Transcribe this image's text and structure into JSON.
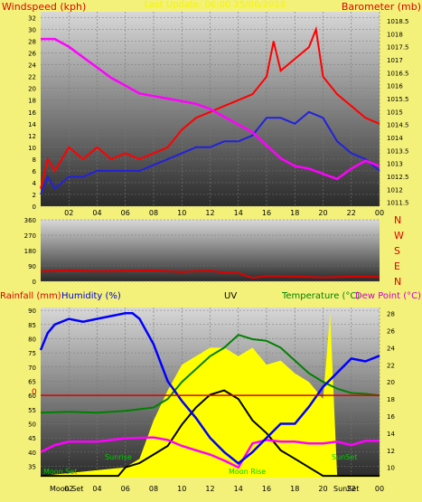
{
  "colors": {
    "background": "#f3f17a",
    "panel_top": "#d8d8d8",
    "panel_bottom": "#2a2a2a",
    "wind_gust": "#ff0000",
    "wind_avg": "#2222dd",
    "pressure": "#ff00ff",
    "wind_dir": "#dd0000",
    "humidity": "#0000ff",
    "temperature": "#008000",
    "dew_point": "#ff00ff",
    "uv": "#000000",
    "solar": "#ffff00",
    "rainfall": "#dd0000"
  },
  "header": {
    "title": "Last Update: 06:00 25/06/2018"
  },
  "chart_data": [
    {
      "type": "line",
      "name": "wind_pressure",
      "title": "",
      "ylabel_left": "Windspeed (kph)",
      "ylabel_right": "Barometer (mb)",
      "x_ticks": [
        "02",
        "04",
        "06",
        "08",
        "10",
        "12",
        "14",
        "16",
        "18",
        "20",
        "22",
        "00"
      ],
      "y_left_ticks": [
        "0",
        "2",
        "4",
        "6",
        "8",
        "10",
        "12",
        "14",
        "16",
        "18",
        "20",
        "22",
        "24",
        "26",
        "28",
        "30",
        "32"
      ],
      "y_left_range": [
        0,
        33
      ],
      "y_right_ticks": [
        "1011.5",
        "1012",
        "1012.5",
        "1013",
        "1013.5",
        "1014",
        "1014.5",
        "1015",
        "1015.5",
        "1016",
        "1016.5",
        "1017",
        "1017.5",
        "1018",
        "1018.5"
      ],
      "y_right_range": [
        1011.35,
        1018.85
      ],
      "series": [
        {
          "key": "gust",
          "x": [
            0,
            0.5,
            1,
            2,
            3,
            4,
            5,
            6,
            7,
            8,
            9,
            10,
            11,
            12,
            13,
            14,
            15,
            16,
            16.5,
            17,
            18,
            19,
            19.5,
            20,
            21,
            22,
            23,
            24
          ],
          "values": [
            3,
            8,
            6,
            10,
            8,
            10,
            8,
            9,
            8,
            9,
            10,
            13,
            15,
            16,
            17,
            18,
            19,
            22,
            28,
            23,
            25,
            27,
            30,
            22,
            19,
            17,
            15,
            14
          ]
        },
        {
          "key": "average",
          "x": [
            0,
            0.5,
            1,
            2,
            3,
            4,
            5,
            6,
            7,
            8,
            9,
            10,
            11,
            12,
            13,
            14,
            15,
            16,
            17,
            18,
            19,
            20,
            21,
            22,
            23,
            24
          ],
          "values": [
            2,
            5,
            3,
            5,
            5,
            6,
            6,
            6,
            6,
            7,
            8,
            9,
            10,
            10,
            11,
            11,
            12,
            15,
            15,
            14,
            16,
            15,
            11,
            9,
            8,
            6
          ]
        },
        {
          "key": "pressure",
          "x": [
            0,
            1,
            2,
            3,
            4,
            5,
            6,
            7,
            8,
            9,
            10,
            11,
            12,
            13,
            14,
            15,
            16,
            17,
            18,
            19,
            20,
            21,
            22,
            23,
            24
          ],
          "values": [
            1017.8,
            1017.8,
            1017.5,
            1017.1,
            1016.7,
            1016.3,
            1016,
            1015.7,
            1015.6,
            1015.5,
            1015.4,
            1015.3,
            1015.1,
            1014.8,
            1014.5,
            1014.2,
            1013.7,
            1013.2,
            1012.9,
            1012.8,
            1012.6,
            1012.4,
            1012.8,
            1013.1,
            1012.9
          ]
        }
      ]
    },
    {
      "type": "line",
      "name": "wind_direction",
      "title": "",
      "y_ticks": [
        "360",
        "270",
        "180",
        "90",
        "0"
      ],
      "y_range": [
        0,
        360
      ],
      "compass_labels": [
        "N",
        "W",
        "S",
        "E",
        "N"
      ],
      "series": [
        {
          "key": "direction",
          "x": [
            0,
            2,
            4,
            6,
            8,
            10,
            11,
            12,
            13,
            14,
            15,
            16,
            18,
            20,
            22,
            24
          ],
          "values": [
            58,
            65,
            60,
            62,
            64,
            55,
            60,
            62,
            52,
            48,
            20,
            30,
            28,
            22,
            28,
            25
          ]
        }
      ]
    },
    {
      "type": "line",
      "name": "temp_humidity_uv",
      "title": "",
      "labels": {
        "rainfall": "Rainfall (mm)",
        "humidity": "Humidity (%)",
        "uv": "UV",
        "temperature": "Temperature (°C)",
        "dew_point": "Dew Point (°C)"
      },
      "x_ticks": [
        "02",
        "04",
        "06",
        "08",
        "10",
        "12",
        "14",
        "16",
        "18",
        "20",
        "22",
        "00"
      ],
      "y_left_ticks": [
        "35",
        "40",
        "45",
        "50",
        "55",
        "60",
        "65",
        "70",
        "75",
        "80",
        "85",
        "90"
      ],
      "y_left_range": [
        31,
        91
      ],
      "y_right_ticks": [
        "10",
        "12",
        "14",
        "16",
        "18",
        "20",
        "22",
        "24",
        "26",
        "28"
      ],
      "y_right_range": [
        8.8,
        28.7
      ],
      "rainfall_value": "0",
      "event_labels": {
        "moon_set_left": "Moon Set",
        "sunrise": "Sunrise",
        "moon_rise": "Moon Rise",
        "sunset": "SunSet",
        "moon_set_bottom": "Moon Set",
        "sunset_bottom": "SunSet"
      },
      "series": [
        {
          "key": "humidity",
          "x": [
            0,
            0.5,
            1,
            2,
            3,
            4,
            5,
            6,
            6.5,
            7,
            8,
            9,
            10,
            11,
            12,
            13,
            14,
            15,
            16,
            17,
            18,
            19,
            20,
            21,
            22,
            23,
            24
          ],
          "values": [
            76,
            82,
            85,
            87,
            86,
            87,
            88,
            89,
            89,
            87,
            78,
            65,
            58,
            52,
            45,
            40,
            36,
            40,
            45,
            50,
            50,
            56,
            63,
            68,
            73,
            72,
            74
          ]
        },
        {
          "key": "temperature",
          "x": [
            0,
            2,
            4,
            6,
            8,
            9,
            10,
            11,
            12,
            13,
            14,
            15,
            16,
            17,
            18,
            19,
            20,
            21,
            22,
            23,
            24
          ],
          "values": [
            16.4,
            16.5,
            16.4,
            16.6,
            17,
            18,
            20,
            21.5,
            23,
            24,
            25.5,
            25,
            24.8,
            24,
            22.5,
            21,
            20,
            19.2,
            18.7,
            18.6,
            18.4
          ]
        },
        {
          "key": "dew_point",
          "x": [
            0,
            1,
            2,
            4,
            6,
            8,
            9,
            10,
            11,
            12,
            13,
            14,
            15,
            16,
            17,
            18,
            19,
            20,
            21,
            22,
            23,
            24
          ],
          "values": [
            11.8,
            12.6,
            13,
            13,
            13.4,
            13.5,
            13.2,
            12.5,
            12,
            11.5,
            10.8,
            10,
            12.8,
            13.2,
            13,
            13,
            12.8,
            12.8,
            13,
            12.6,
            13.1,
            13.1
          ]
        },
        {
          "key": "uv",
          "x": [
            0,
            5.5,
            6,
            7,
            8,
            9,
            10,
            11,
            12,
            13,
            14,
            15,
            16,
            17,
            18,
            19,
            20,
            24
          ],
          "values": [
            9,
            9,
            10,
            10.5,
            11.5,
            12.5,
            15,
            17,
            18.5,
            19,
            18,
            15.5,
            14,
            12,
            11,
            10,
            9,
            9
          ]
        },
        {
          "key": "solar",
          "x": [
            0,
            6,
            7,
            8,
            9,
            10,
            11,
            12,
            13,
            14,
            15,
            16,
            17,
            18,
            19,
            20,
            20.5,
            21,
            22,
            24
          ],
          "values": [
            9,
            10,
            11,
            15.5,
            19,
            22,
            23,
            24,
            24,
            23,
            24,
            22,
            22.5,
            21,
            20,
            18,
            28,
            9,
            9,
            9
          ]
        }
      ]
    }
  ]
}
